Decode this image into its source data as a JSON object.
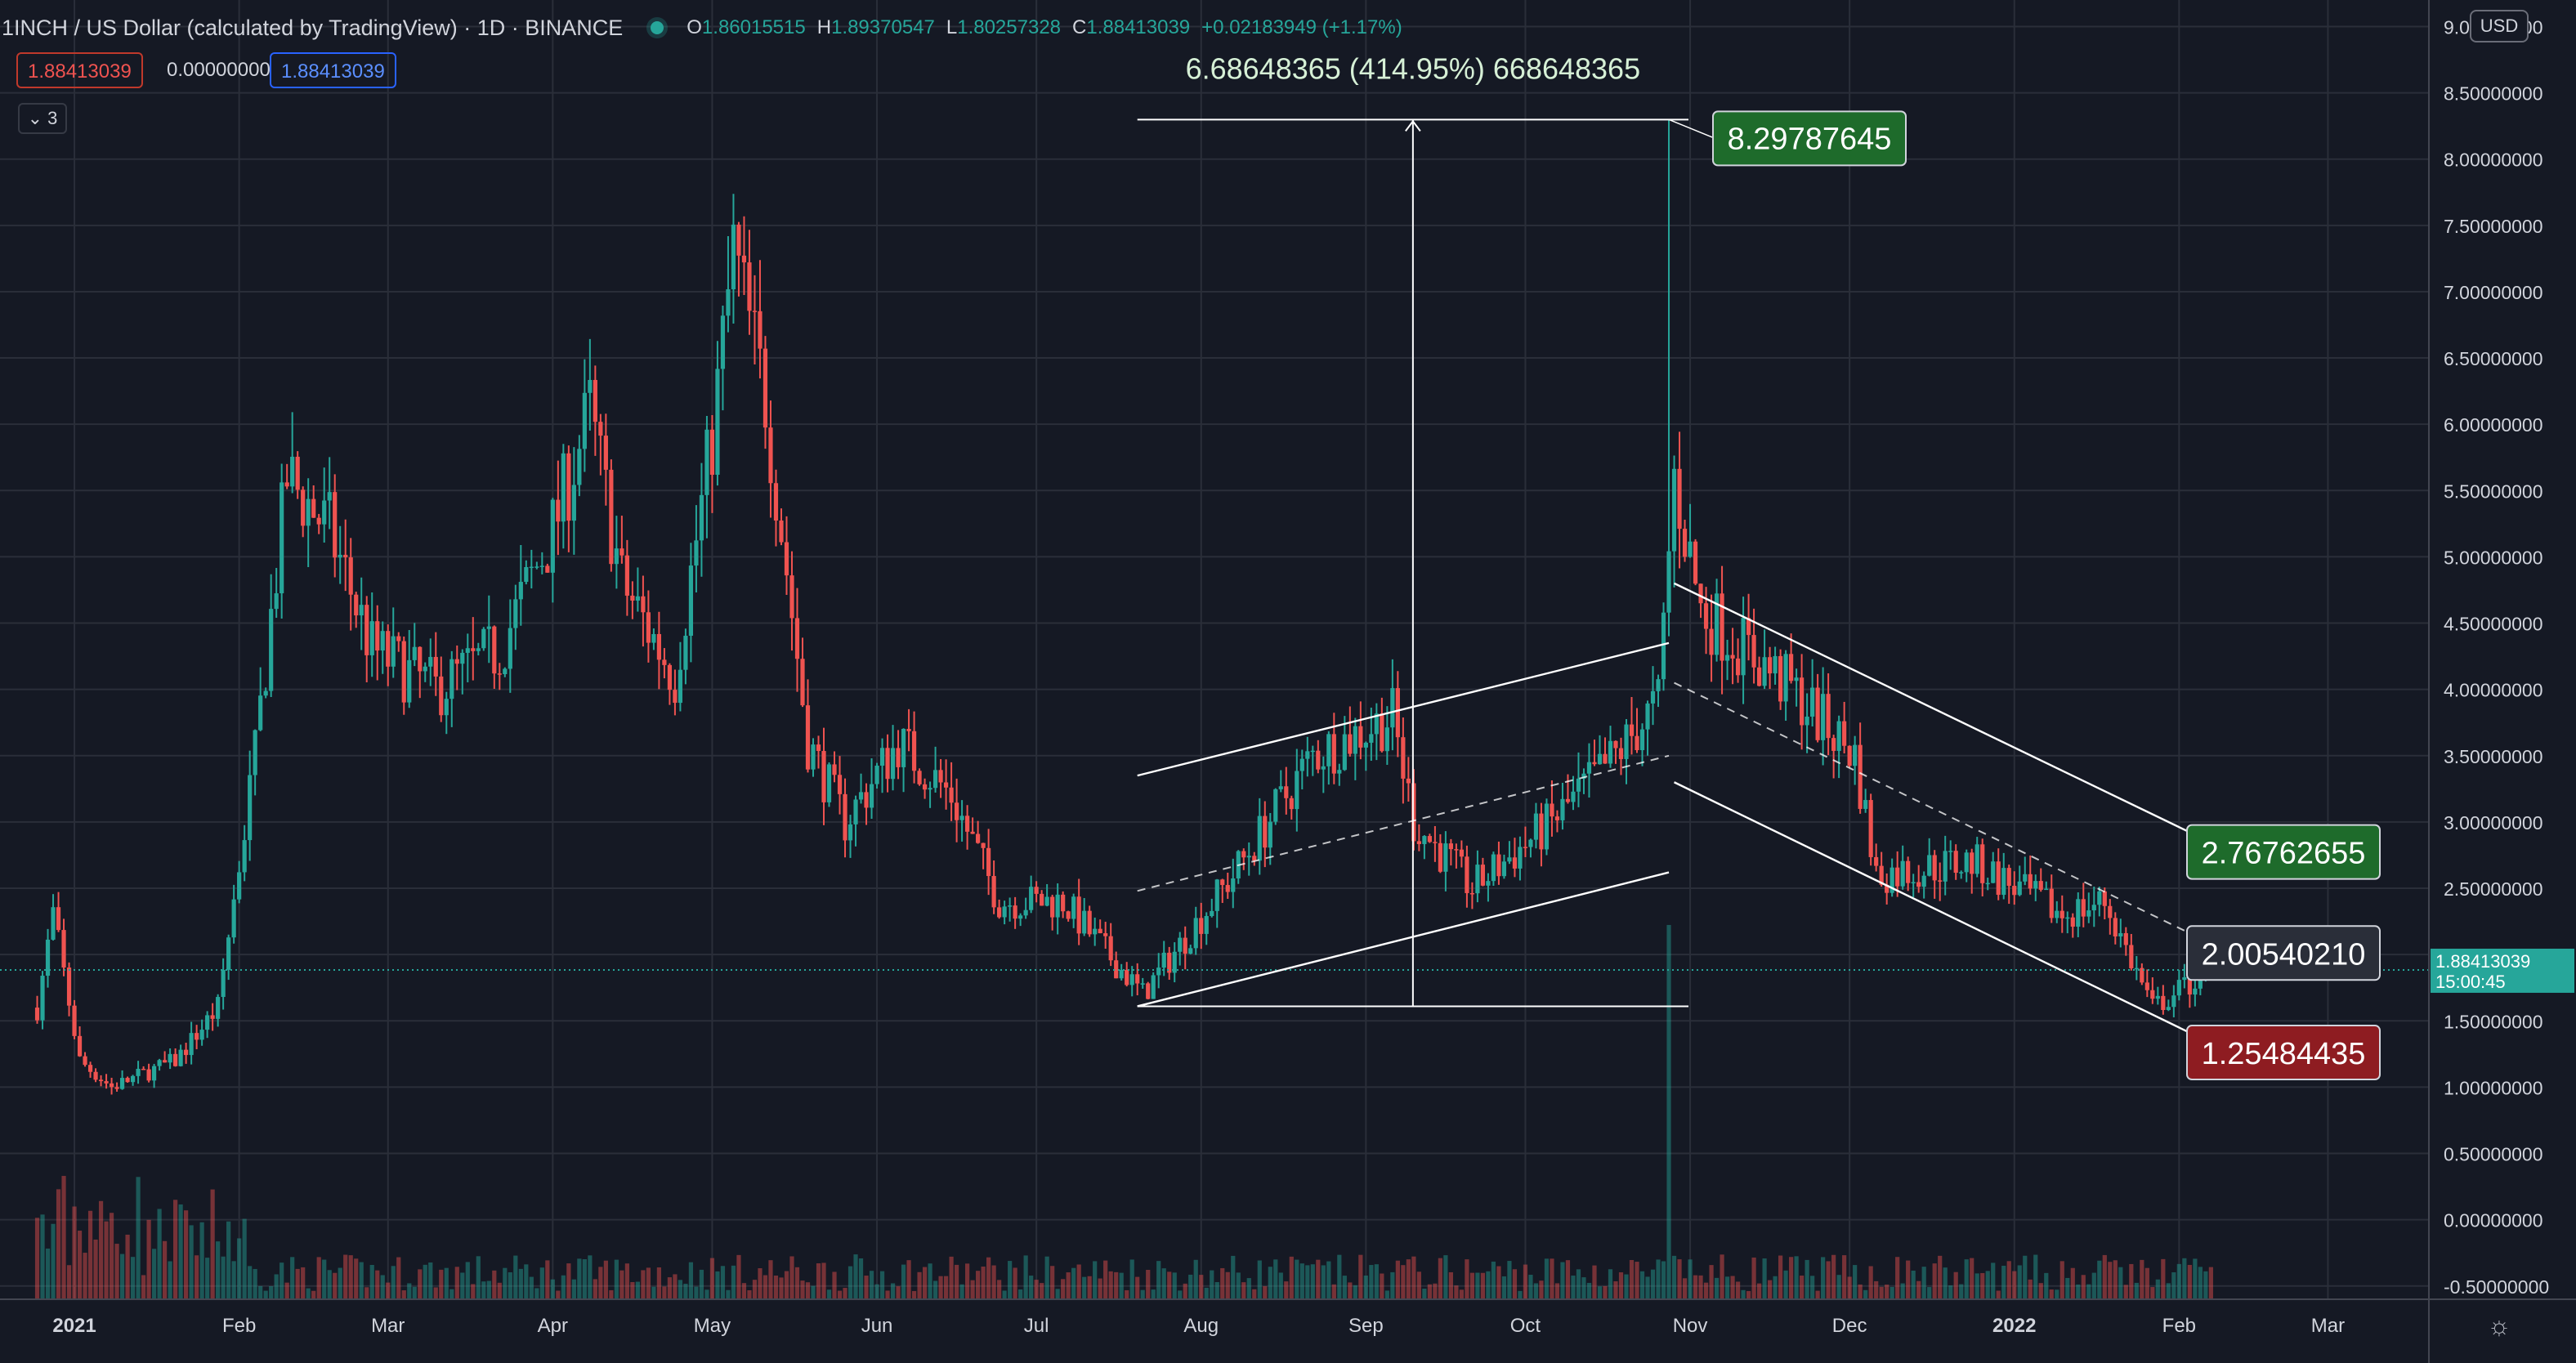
{
  "header": {
    "symbol": "1INCH / US Dollar (calculated by TradingView) · 1D · BINANCE",
    "open_label": "O",
    "open": "1.86015515",
    "high_label": "H",
    "high": "1.89370547",
    "low_label": "L",
    "low": "1.80257328",
    "close_label": "C",
    "close": "1.88413039",
    "change": "+0.02183949 (+1.17%)"
  },
  "trade_panel": {
    "sell_price": "1.88413039",
    "spread": "0.00000000",
    "buy_price": "1.88413039"
  },
  "indicators_toggle": "3",
  "currency_button": "USD",
  "settings_icon": "gear-icon",
  "colors": {
    "up": "#26a69a",
    "down": "#ef5350",
    "background": "#151924",
    "grid": "#2a2e39",
    "drawing": "#ffffff"
  },
  "chart_data": {
    "type": "candlestick",
    "symbol": "1INCH/USD",
    "interval": "1D",
    "grid": true,
    "y_ticks": [
      "9.00000000",
      "8.50000000",
      "8.00000000",
      "7.50000000",
      "7.00000000",
      "6.50000000",
      "6.00000000",
      "5.50000000",
      "5.00000000",
      "4.50000000",
      "4.00000000",
      "3.50000000",
      "3.00000000",
      "2.50000000",
      "2.00000000",
      "1.50000000",
      "1.00000000",
      "0.50000000",
      "0.00000000",
      "-0.50000000"
    ],
    "y_values": [
      9,
      8.5,
      8,
      7.5,
      7,
      6.5,
      6,
      5.5,
      5,
      4.5,
      4,
      3.5,
      3,
      2.5,
      2,
      1.5,
      1,
      0.5,
      0,
      -0.5
    ],
    "ylim": [
      -0.6,
      9.2
    ],
    "x_ticks": [
      "2021",
      "Feb",
      "Mar",
      "Apr",
      "May",
      "Jun",
      "Jul",
      "Aug",
      "Sep",
      "Oct",
      "Nov",
      "Dec",
      "2022",
      "Feb",
      "Mar"
    ],
    "x_tick_dates": [
      "2021-01-01",
      "2021-02-01",
      "2021-03-01",
      "2021-04-01",
      "2021-05-01",
      "2021-06-01",
      "2021-07-01",
      "2021-08-01",
      "2021-09-01",
      "2021-10-01",
      "2021-11-01",
      "2021-12-01",
      "2022-01-01",
      "2022-02-01",
      "2022-03-01"
    ],
    "xlim": [
      "2020-12-18",
      "2022-03-20"
    ],
    "close_anchors": [
      {
        "date": "2020-12-25",
        "close": 1.6
      },
      {
        "date": "2020-12-28",
        "close": 2.3
      },
      {
        "date": "2021-01-02",
        "close": 1.2
      },
      {
        "date": "2021-01-08",
        "close": 1.0
      },
      {
        "date": "2021-01-20",
        "close": 1.2
      },
      {
        "date": "2021-01-28",
        "close": 1.6
      },
      {
        "date": "2021-02-04",
        "close": 3.5
      },
      {
        "date": "2021-02-10",
        "close": 5.6
      },
      {
        "date": "2021-02-18",
        "close": 5.2
      },
      {
        "date": "2021-02-26",
        "close": 4.3
      },
      {
        "date": "2021-03-10",
        "close": 4.0
      },
      {
        "date": "2021-03-22",
        "close": 4.3
      },
      {
        "date": "2021-04-01",
        "close": 5.2
      },
      {
        "date": "2021-04-08",
        "close": 6.1
      },
      {
        "date": "2021-04-14",
        "close": 4.8
      },
      {
        "date": "2021-04-24",
        "close": 4.1
      },
      {
        "date": "2021-05-01",
        "close": 5.9
      },
      {
        "date": "2021-05-05",
        "close": 7.3
      },
      {
        "date": "2021-05-11",
        "close": 6.2
      },
      {
        "date": "2021-05-19",
        "close": 3.6
      },
      {
        "date": "2021-05-26",
        "close": 3.0
      },
      {
        "date": "2021-06-05",
        "close": 3.6
      },
      {
        "date": "2021-06-15",
        "close": 3.2
      },
      {
        "date": "2021-06-24",
        "close": 2.4
      },
      {
        "date": "2021-07-06",
        "close": 2.4
      },
      {
        "date": "2021-07-21",
        "close": 1.7
      },
      {
        "date": "2021-08-07",
        "close": 2.6
      },
      {
        "date": "2021-08-22",
        "close": 3.5
      },
      {
        "date": "2021-09-06",
        "close": 3.8
      },
      {
        "date": "2021-09-10",
        "close": 3.0
      },
      {
        "date": "2021-09-21",
        "close": 2.5
      },
      {
        "date": "2021-10-06",
        "close": 3.0
      },
      {
        "date": "2021-10-18",
        "close": 3.5
      },
      {
        "date": "2021-10-26",
        "close": 3.9
      },
      {
        "date": "2021-10-29",
        "close": 5.6
      },
      {
        "date": "2021-11-03",
        "close": 4.6
      },
      {
        "date": "2021-11-20",
        "close": 4.0
      },
      {
        "date": "2021-12-02",
        "close": 3.5
      },
      {
        "date": "2021-12-06",
        "close": 2.6
      },
      {
        "date": "2021-12-24",
        "close": 2.7
      },
      {
        "date": "2022-01-10",
        "close": 2.3
      },
      {
        "date": "2022-01-18",
        "close": 2.4
      },
      {
        "date": "2022-01-27",
        "close": 1.6
      },
      {
        "date": "2022-02-07",
        "close": 1.88
      }
    ],
    "last_price": {
      "value": 1.88413039,
      "label": "1.88413039",
      "countdown": "15:00:45"
    },
    "drawings": {
      "price_range": {
        "label": "6.68648365 (414.95%) 668648365",
        "from": {
          "date": "2021-07-20",
          "price": 1.61
        },
        "to": {
          "date": "2021-10-28",
          "price": 8.29787645
        },
        "high_label": "8.29787645"
      },
      "rising_channel": [
        {
          "role": "upper",
          "from": {
            "date": "2021-07-20",
            "price": 3.35
          },
          "to": {
            "date": "2021-10-28",
            "price": 4.35
          }
        },
        {
          "role": "middle",
          "from": {
            "date": "2021-07-20",
            "price": 2.48
          },
          "to": {
            "date": "2021-10-28",
            "price": 3.5
          }
        },
        {
          "role": "lower",
          "from": {
            "date": "2021-07-20",
            "price": 1.61
          },
          "to": {
            "date": "2021-10-28",
            "price": 2.62
          }
        }
      ],
      "falling_channel": [
        {
          "role": "upper",
          "from": {
            "date": "2021-10-29",
            "price": 4.8
          },
          "to": {
            "date": "2022-02-11",
            "price": 2.76762655
          }
        },
        {
          "role": "middle",
          "from": {
            "date": "2021-10-29",
            "price": 4.05
          },
          "to": {
            "date": "2022-02-11",
            "price": 2.0054021
          }
        },
        {
          "role": "lower",
          "from": {
            "date": "2021-10-29",
            "price": 3.3
          },
          "to": {
            "date": "2022-02-11",
            "price": 1.25484435
          }
        }
      ],
      "price_labels": [
        {
          "value": "8.29787645",
          "color": "#1e6b2b"
        },
        {
          "value": "2.76762655",
          "color": "#1e6b2b"
        },
        {
          "value": "2.00540210",
          "color": "#2a2e39"
        },
        {
          "value": "1.25484435",
          "color": "#8e1c21"
        }
      ]
    }
  }
}
